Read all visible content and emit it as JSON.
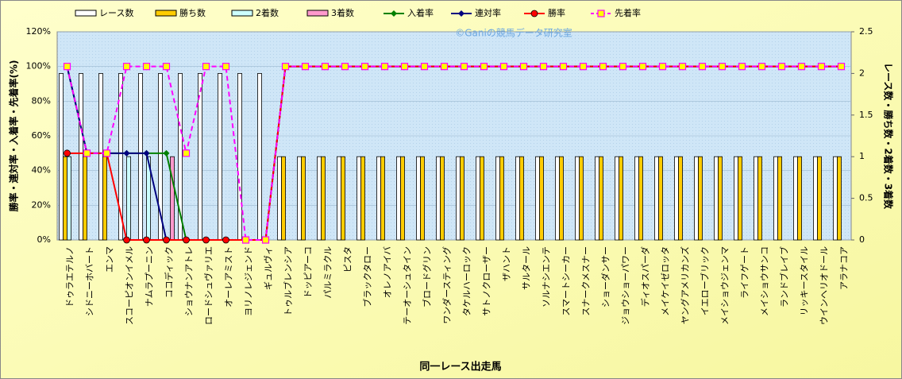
{
  "chart_data": {
    "type": "bar-line",
    "watermark": "©Ganiの競馬データ研究室",
    "x_label": "同一レース出走馬",
    "y_label": "勝率・連対率・入着率・先着率(%)",
    "y2_label": "レース数・勝ち数・2着数・3着数",
    "categories": [
      "ドゥラエテルノ",
      "シドニーホバート",
      "エンマ",
      "スコーピオンイメル",
      "ナムラプーニン",
      "ココディック",
      "ショウナンアトレ",
      "ロードシュヴァリエ",
      "オーレアミスト",
      "ヨリノレジェンド",
      "ギュルヴィ",
      "トゥルブレンシア",
      "ドッピアーコ",
      "パルミラクル",
      "ピスタ",
      "ブラックタロー",
      "オレノアイバ",
      "テーオーシュタイン",
      "ブロードグリン",
      "ワンダースティング",
      "タケルハーロック",
      "サトノクローザー",
      "ザハント",
      "サルタール",
      "ソルナシエンテ",
      "スマートシーカー",
      "スナークメスナー",
      "ショーダンサー",
      "ジョウショーパワー",
      "ディオスパーダ",
      "メイケイゼロッタ",
      "ヤングアメリカンズ",
      "イエローブリック",
      "メイショウジェンマ",
      "ライフゲート",
      "メイショウサンコ",
      "ランドブレイブ",
      "リッキースタイル",
      "ウインヘリオドール",
      "アラナコア"
    ],
    "series": [
      {
        "name": "レース数",
        "type": "bar",
        "axis": "y2",
        "color": "#ffffff",
        "values": [
          2,
          2,
          2,
          2,
          2,
          2,
          2,
          2,
          2,
          2,
          2,
          1,
          1,
          1,
          1,
          1,
          1,
          1,
          1,
          1,
          1,
          1,
          1,
          1,
          1,
          1,
          1,
          1,
          1,
          1,
          1,
          1,
          1,
          1,
          1,
          1,
          1,
          1,
          1,
          1
        ]
      },
      {
        "name": "勝ち数",
        "type": "bar",
        "axis": "y2",
        "color": "#ffcc00",
        "values": [
          1,
          1,
          1,
          0,
          0,
          0,
          0,
          0,
          0,
          0,
          0,
          1,
          1,
          1,
          1,
          1,
          1,
          1,
          1,
          1,
          1,
          1,
          1,
          1,
          1,
          1,
          1,
          1,
          1,
          1,
          1,
          1,
          1,
          1,
          1,
          1,
          1,
          1,
          1,
          1
        ]
      },
      {
        "name": "2着数",
        "type": "bar",
        "axis": "y2",
        "color": "#ccffff",
        "values": [
          1,
          0,
          0,
          1,
          1,
          0,
          0,
          0,
          0,
          0,
          0,
          0,
          0,
          0,
          0,
          0,
          0,
          0,
          0,
          0,
          0,
          0,
          0,
          0,
          0,
          0,
          0,
          0,
          0,
          0,
          0,
          0,
          0,
          0,
          0,
          0,
          0,
          0,
          0,
          0
        ]
      },
      {
        "name": "3着数",
        "type": "bar",
        "axis": "y2",
        "color": "#ff99cc",
        "values": [
          0,
          0,
          0,
          0,
          0,
          1,
          0,
          0,
          0,
          0,
          0,
          0,
          0,
          0,
          0,
          0,
          0,
          0,
          0,
          0,
          0,
          0,
          0,
          0,
          0,
          0,
          0,
          0,
          0,
          0,
          0,
          0,
          0,
          0,
          0,
          0,
          0,
          0,
          0,
          0
        ]
      },
      {
        "name": "入着率",
        "type": "line",
        "color": "#008000",
        "marker": "diamond",
        "values": [
          100,
          50,
          50,
          50,
          50,
          50,
          0,
          0,
          0,
          0,
          0,
          100,
          100,
          100,
          100,
          100,
          100,
          100,
          100,
          100,
          100,
          100,
          100,
          100,
          100,
          100,
          100,
          100,
          100,
          100,
          100,
          100,
          100,
          100,
          100,
          100,
          100,
          100,
          100,
          100
        ]
      },
      {
        "name": "連対率",
        "type": "line",
        "color": "#000080",
        "marker": "diamond",
        "values": [
          100,
          50,
          50,
          50,
          50,
          0,
          0,
          0,
          0,
          0,
          0,
          100,
          100,
          100,
          100,
          100,
          100,
          100,
          100,
          100,
          100,
          100,
          100,
          100,
          100,
          100,
          100,
          100,
          100,
          100,
          100,
          100,
          100,
          100,
          100,
          100,
          100,
          100,
          100,
          100
        ]
      },
      {
        "name": "勝率",
        "type": "line",
        "color": "#ff0000",
        "marker": "circle",
        "values": [
          50,
          50,
          50,
          0,
          0,
          0,
          0,
          0,
          0,
          0,
          0,
          100,
          100,
          100,
          100,
          100,
          100,
          100,
          100,
          100,
          100,
          100,
          100,
          100,
          100,
          100,
          100,
          100,
          100,
          100,
          100,
          100,
          100,
          100,
          100,
          100,
          100,
          100,
          100,
          100
        ]
      },
      {
        "name": "先着率",
        "type": "line",
        "color": "#ff00ff",
        "marker": "square",
        "dashed": true,
        "values": [
          100,
          50,
          50,
          100,
          100,
          100,
          50,
          100,
          100,
          0,
          0,
          100,
          100,
          100,
          100,
          100,
          100,
          100,
          100,
          100,
          100,
          100,
          100,
          100,
          100,
          100,
          100,
          100,
          100,
          100,
          100,
          100,
          100,
          100,
          100,
          100,
          100,
          100,
          100,
          100
        ]
      }
    ],
    "ylim": [
      0,
      120
    ],
    "yticks": [
      {
        "value": 0,
        "label": "0%"
      },
      {
        "value": 20,
        "label": "20%"
      },
      {
        "value": 40,
        "label": "40%"
      },
      {
        "value": 60,
        "label": "60%"
      },
      {
        "value": 80,
        "label": "80%"
      },
      {
        "value": 100,
        "label": "100%"
      },
      {
        "value": 120,
        "label": "120%"
      }
    ],
    "y2lim": [
      0,
      2.5
    ],
    "y2ticks": [
      0,
      0.5,
      1,
      1.5,
      2,
      2.5
    ],
    "grid": true
  }
}
